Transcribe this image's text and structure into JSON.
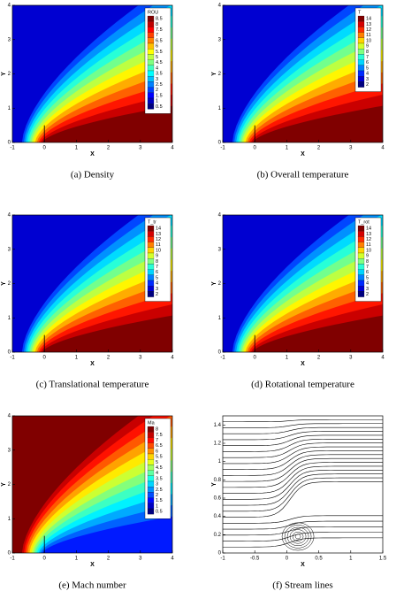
{
  "panels": [
    {
      "caption": "(a)  Density",
      "type": "density",
      "xlabel": "X",
      "ylabel": "Y",
      "xlim": [
        -1,
        4
      ],
      "ylim": [
        0,
        4
      ],
      "xticks": [
        -1,
        0,
        1,
        2,
        3,
        4
      ],
      "yticks": [
        0,
        1,
        2,
        3,
        4
      ],
      "colorbar_title": "ROU",
      "levels": [
        8.5,
        8,
        7.5,
        7,
        6.5,
        6,
        5.5,
        5,
        4.5,
        4,
        3.5,
        3,
        2.5,
        2,
        1.5,
        1,
        0.5
      ]
    },
    {
      "caption": "(b)  Overall temperature",
      "type": "temperature",
      "xlabel": "X",
      "ylabel": "Y",
      "xlim": [
        -1,
        4
      ],
      "ylim": [
        0,
        4
      ],
      "xticks": [
        -1,
        0,
        1,
        2,
        3,
        4
      ],
      "yticks": [
        0,
        1,
        2,
        3,
        4
      ],
      "colorbar_title": "T",
      "levels": [
        14,
        13,
        12,
        11,
        10,
        9,
        8,
        7,
        6,
        5,
        4,
        3,
        2
      ]
    },
    {
      "caption": "(c)  Translational temperature",
      "type": "temperature",
      "xlabel": "X",
      "ylabel": "Y",
      "xlim": [
        -1,
        4
      ],
      "ylim": [
        0,
        4
      ],
      "xticks": [
        -1,
        0,
        1,
        2,
        3,
        4
      ],
      "yticks": [
        0,
        1,
        2,
        3,
        4
      ],
      "colorbar_title": "T_tr",
      "levels": [
        14,
        13,
        12,
        11,
        10,
        9,
        8,
        7,
        6,
        5,
        4,
        3,
        2
      ]
    },
    {
      "caption": "(d)  Rotational temperature",
      "type": "temperature",
      "xlabel": "X",
      "ylabel": "Y",
      "xlim": [
        -1,
        4
      ],
      "ylim": [
        0,
        4
      ],
      "xticks": [
        -1,
        0,
        1,
        2,
        3,
        4
      ],
      "yticks": [
        0,
        1,
        2,
        3,
        4
      ],
      "colorbar_title": "T_rot",
      "levels": [
        14,
        13,
        12,
        11,
        10,
        9,
        8,
        7,
        6,
        5,
        4,
        3,
        2
      ]
    },
    {
      "caption": "(e)  Mach number",
      "type": "mach",
      "xlabel": "X",
      "ylabel": "Y",
      "xlim": [
        -1,
        4
      ],
      "ylim": [
        0,
        4
      ],
      "xticks": [
        -1,
        0,
        1,
        2,
        3,
        4
      ],
      "yticks": [
        0,
        1,
        2,
        3,
        4
      ],
      "colorbar_title": "Ma",
      "levels": [
        8,
        7.5,
        7,
        6.5,
        6,
        5.5,
        5,
        4.5,
        4,
        3.5,
        3,
        2.5,
        2,
        1.5,
        1,
        0.5
      ]
    },
    {
      "caption": "(f)  Stream lines",
      "type": "stream",
      "xlabel": "X",
      "ylabel": "Y",
      "xlim": [
        -1,
        1.5
      ],
      "ylim": [
        0,
        1.5
      ],
      "xticks": [
        -1,
        -0.5,
        0,
        0.5,
        1,
        1.5
      ],
      "yticks": [
        0,
        0.2,
        0.4,
        0.6,
        0.8,
        1,
        1.2,
        1.4
      ]
    }
  ]
}
